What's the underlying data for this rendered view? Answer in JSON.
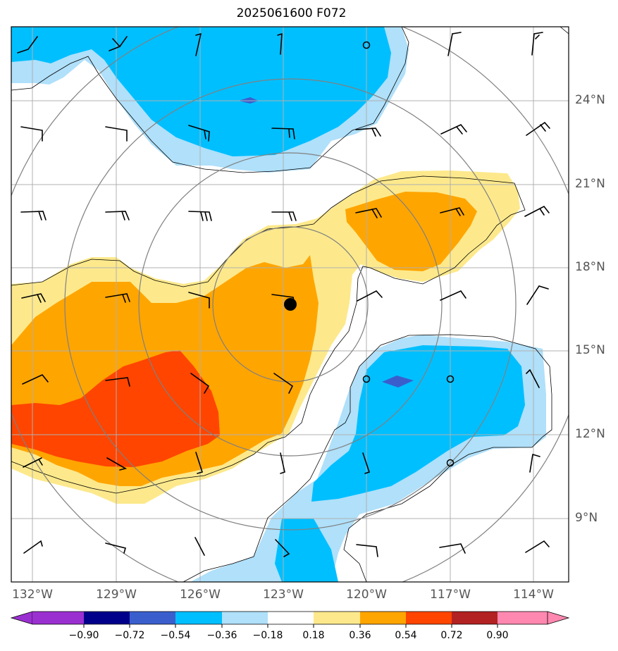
{
  "title": "2025061600 F072",
  "lat_labels": [
    "24°N",
    "21°N",
    "18°N",
    "15°N",
    "12°N",
    "9°N"
  ],
  "lon_labels": [
    "132°W",
    "129°W",
    "126°W",
    "123°W",
    "120°W",
    "117°W",
    "114°W"
  ],
  "colorbar": {
    "ticks": [
      "−0.90",
      "−0.72",
      "−0.54",
      "−0.36",
      "−0.18",
      "0.18",
      "0.36",
      "0.54",
      "0.72",
      "0.90"
    ],
    "colors": [
      "#9b30d0",
      "#00008b",
      "#3a5fcd",
      "#00bfff",
      "#b0e0fa",
      "#ffffff",
      "#fde98c",
      "#ffa500",
      "#ff4500",
      "#b22222",
      "#ff88b0"
    ]
  },
  "colors": {
    "neg_light": "#b0e0fa",
    "neg_mid": "#00bfff",
    "neg_dark": "#3a5fcd",
    "pos_light": "#fde98c",
    "pos_mid": "#ffa500",
    "pos_dark": "#ff4500",
    "grid": "#b0b0b0",
    "range_ring": "#808080"
  },
  "markers": {
    "center_dot": "filled-circle",
    "calm_circles": "open-circle"
  }
}
